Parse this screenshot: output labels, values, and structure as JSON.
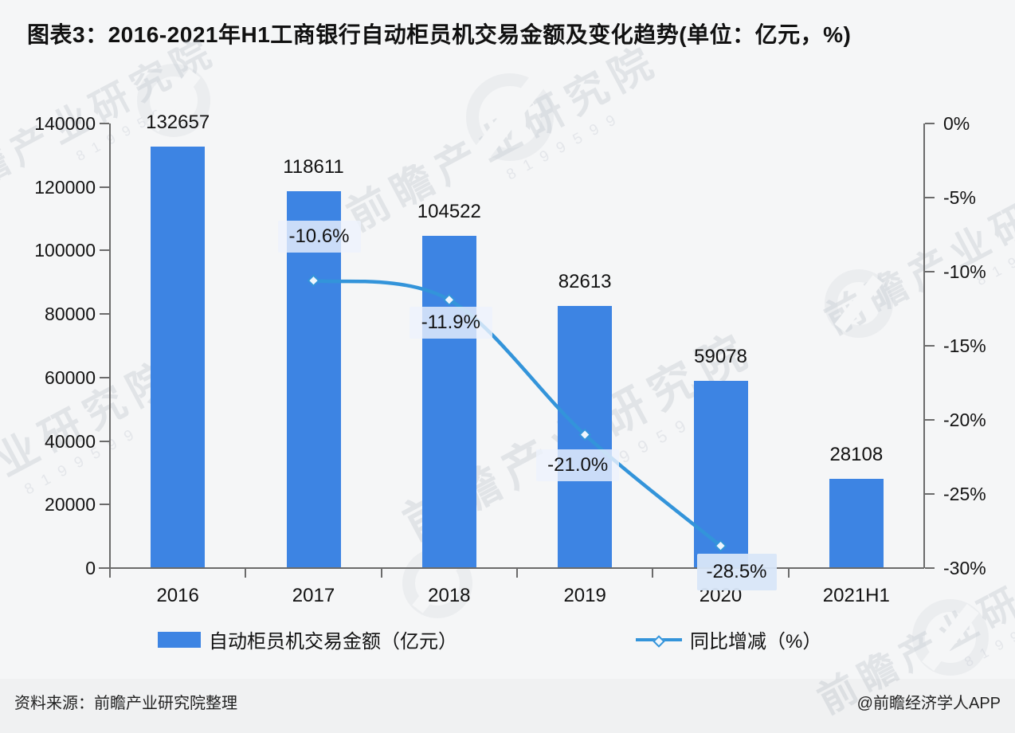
{
  "title": "图表3：2016-2021年H1工商银行自动柜员机交易金额及变化趋势(单位：亿元，%)",
  "chart_data": {
    "type": "combo",
    "categories": [
      "2016",
      "2017",
      "2018",
      "2019",
      "2020",
      "2021H1"
    ],
    "series": [
      {
        "name": "自动柜员机交易金额（亿元）",
        "type": "bar",
        "axis": "left",
        "values": [
          132657,
          118611,
          104522,
          82613,
          59078,
          28108
        ],
        "value_labels": [
          "132657",
          "118611",
          "104522",
          "82613",
          "59078",
          "28108"
        ]
      },
      {
        "name": "同比增减（%）",
        "type": "line",
        "axis": "right",
        "values": [
          null,
          -10.6,
          -11.9,
          -21.0,
          -28.5,
          null
        ],
        "point_labels": [
          "",
          "-10.6%",
          "-11.9%",
          "-21.0%",
          "-28.5%",
          ""
        ]
      }
    ],
    "left_axis": {
      "min": 0,
      "max": 140000,
      "step": 20000,
      "ticks": [
        "140000",
        "120000",
        "100000",
        "80000",
        "60000",
        "40000",
        "20000",
        "0"
      ]
    },
    "right_axis": {
      "min": -30,
      "max": 0,
      "step": -5,
      "ticks": [
        "0%",
        "-5%",
        "-10%",
        "-15%",
        "-20%",
        "-25%",
        "-30%"
      ]
    },
    "grid": false,
    "legend_position": "bottom"
  },
  "legend": {
    "items": [
      {
        "label": "自动柜员机交易金额（亿元）",
        "marker": "bar-swatch"
      },
      {
        "label": "同比增减（%）",
        "marker": "line-diamond"
      }
    ]
  },
  "footer": {
    "source": "资料来源：前瞻产业研究院整理",
    "credit": "@前瞻经济学人APP"
  },
  "watermark": {
    "main": "前瞻产业研究院",
    "sub": "8199599"
  },
  "colors": {
    "bar": "#3d84e3",
    "line": "#3394da",
    "axis": "#6b6b6b",
    "text": "#111111",
    "label_box": "rgba(238,243,252,0.80)",
    "label_box_highlight": "rgba(216,230,248,0.95)",
    "background": "#f5f6f7"
  }
}
